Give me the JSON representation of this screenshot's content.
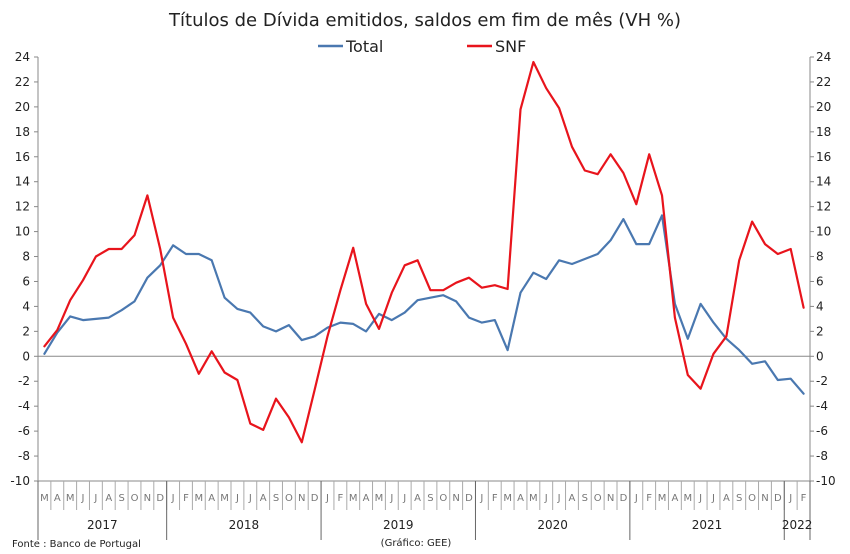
{
  "chart_data": {
    "type": "line",
    "title": "Títulos de Dívida emitidos, saldos em fim de mês  (VH %)",
    "source_note": "Fonte : Banco de Portugal",
    "credit_note": "(Gráfico: GEE)",
    "ylim": [
      -10,
      24
    ],
    "yticks": [
      -10,
      -8,
      -6,
      -4,
      -2,
      0,
      2,
      4,
      6,
      8,
      10,
      12,
      14,
      16,
      18,
      20,
      22,
      24
    ],
    "grid": false,
    "legend_position": "top-center",
    "categories": [
      "M",
      "A",
      "M",
      "J",
      "J",
      "A",
      "S",
      "O",
      "N",
      "D",
      "J",
      "F",
      "M",
      "A",
      "M",
      "J",
      "J",
      "A",
      "S",
      "O",
      "N",
      "D",
      "J",
      "F",
      "M",
      "A",
      "M",
      "J",
      "J",
      "A",
      "S",
      "O",
      "N",
      "D",
      "J",
      "F",
      "M",
      "A",
      "M",
      "J",
      "J",
      "A",
      "S",
      "O",
      "N",
      "D",
      "J",
      "F",
      "M",
      "A",
      "M",
      "J",
      "J",
      "A",
      "S",
      "O",
      "N",
      "D",
      "J",
      "F"
    ],
    "years": [
      {
        "label": "2017",
        "start": 0,
        "end": 10
      },
      {
        "label": "2018",
        "start": 10,
        "end": 22
      },
      {
        "label": "2019",
        "start": 22,
        "end": 34
      },
      {
        "label": "2020",
        "start": 34,
        "end": 46
      },
      {
        "label": "2021",
        "start": 46,
        "end": 58
      },
      {
        "label": "2022",
        "start": 58,
        "end": 60
      }
    ],
    "series": [
      {
        "name": "Total",
        "color": "#4a78b0",
        "values": [
          0.2,
          1.9,
          3.2,
          2.9,
          3.0,
          3.1,
          3.7,
          4.4,
          6.3,
          7.3,
          8.9,
          8.2,
          8.2,
          7.7,
          4.7,
          3.8,
          3.5,
          2.4,
          2.0,
          2.5,
          1.3,
          1.6,
          2.3,
          2.7,
          2.6,
          2.0,
          3.4,
          2.9,
          3.5,
          4.5,
          4.7,
          4.9,
          4.4,
          3.1,
          2.7,
          2.9,
          0.5,
          5.1,
          6.7,
          6.2,
          7.7,
          7.4,
          7.8,
          8.2,
          9.3,
          11.0,
          9.0,
          9.0,
          11.3,
          4.2,
          1.4,
          4.2,
          2.7,
          1.4,
          0.5,
          -0.6,
          -0.4,
          -1.9,
          -1.8,
          -3.0
        ]
      },
      {
        "name": "SNF",
        "color": "#e8141c",
        "values": [
          0.8,
          2.1,
          4.5,
          6.1,
          8.0,
          8.6,
          8.6,
          9.7,
          12.9,
          8.6,
          3.1,
          1.0,
          -1.4,
          0.4,
          -1.3,
          -1.9,
          -5.4,
          -5.9,
          -3.4,
          -4.9,
          -6.9,
          -2.7,
          1.6,
          5.3,
          8.7,
          4.2,
          2.2,
          5.1,
          7.3,
          7.7,
          5.3,
          5.3,
          5.9,
          6.3,
          5.5,
          5.7,
          5.4,
          19.8,
          23.6,
          21.5,
          19.9,
          16.8,
          14.9,
          14.6,
          16.2,
          14.7,
          12.2,
          16.2,
          12.9,
          3.1,
          -1.5,
          -2.6,
          0.2,
          1.6,
          7.7,
          10.8,
          9.0,
          8.2,
          8.6,
          3.9
        ]
      }
    ]
  }
}
